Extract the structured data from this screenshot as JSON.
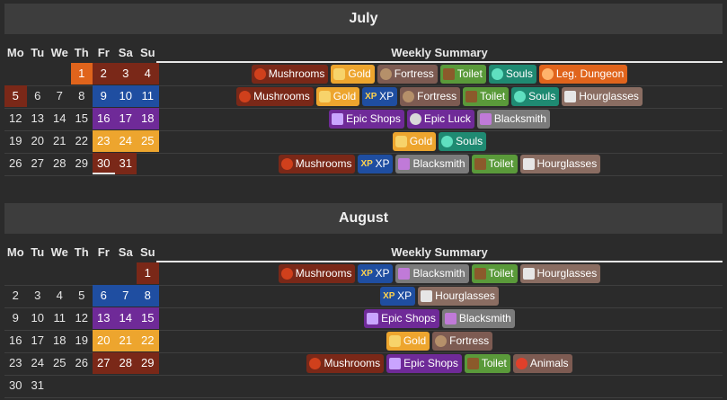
{
  "day_headers": [
    "Mo",
    "Tu",
    "We",
    "Th",
    "Fr",
    "Sa",
    "Su"
  ],
  "summary_title": "Weekly Summary",
  "months": [
    {
      "name": "July",
      "weeks": [
        {
          "days": [
            {
              "d": ""
            },
            {
              "d": ""
            },
            {
              "d": ""
            },
            {
              "d": "1",
              "c": "orange"
            },
            {
              "d": "2",
              "c": "brown"
            },
            {
              "d": "3",
              "c": "brown"
            },
            {
              "d": "4",
              "c": "brown"
            }
          ],
          "events": [
            {
              "k": "mushrooms",
              "label": "Mushrooms"
            },
            {
              "k": "gold",
              "label": "Gold"
            },
            {
              "k": "fortress",
              "label": "Fortress"
            },
            {
              "k": "toilet",
              "label": "Toilet"
            },
            {
              "k": "souls",
              "label": "Souls"
            },
            {
              "k": "dungeon",
              "label": "Leg. Dungeon"
            }
          ]
        },
        {
          "days": [
            {
              "d": "5",
              "c": "brown"
            },
            {
              "d": "6"
            },
            {
              "d": "7"
            },
            {
              "d": "8"
            },
            {
              "d": "9",
              "c": "blue"
            },
            {
              "d": "10",
              "c": "blue"
            },
            {
              "d": "11",
              "c": "blue"
            }
          ],
          "events": [
            {
              "k": "mushrooms",
              "label": "Mushrooms"
            },
            {
              "k": "gold",
              "label": "Gold"
            },
            {
              "k": "xp",
              "label": "XP"
            },
            {
              "k": "fortress",
              "label": "Fortress"
            },
            {
              "k": "toilet",
              "label": "Toilet"
            },
            {
              "k": "souls",
              "label": "Souls"
            },
            {
              "k": "hourglasses",
              "label": "Hourglasses"
            }
          ]
        },
        {
          "days": [
            {
              "d": "12"
            },
            {
              "d": "13"
            },
            {
              "d": "14"
            },
            {
              "d": "15"
            },
            {
              "d": "16",
              "c": "purple"
            },
            {
              "d": "17",
              "c": "purple"
            },
            {
              "d": "18",
              "c": "purple"
            }
          ],
          "events": [
            {
              "k": "epicshops",
              "label": "Epic Shops"
            },
            {
              "k": "epicluck",
              "label": "Epic Luck"
            },
            {
              "k": "blacksmith",
              "label": "Blacksmith"
            }
          ]
        },
        {
          "days": [
            {
              "d": "19"
            },
            {
              "d": "20"
            },
            {
              "d": "21"
            },
            {
              "d": "22"
            },
            {
              "d": "23",
              "c": "yellow"
            },
            {
              "d": "24",
              "c": "yellow"
            },
            {
              "d": "25",
              "c": "yellow"
            }
          ],
          "events": [
            {
              "k": "gold",
              "label": "Gold"
            },
            {
              "k": "souls",
              "label": "Souls"
            }
          ]
        },
        {
          "days": [
            {
              "d": "26"
            },
            {
              "d": "27"
            },
            {
              "d": "28"
            },
            {
              "d": "29"
            },
            {
              "d": "30",
              "c": "brown",
              "today": true
            },
            {
              "d": "31",
              "c": "brown"
            },
            {
              "d": ""
            }
          ],
          "events": [
            {
              "k": "mushrooms",
              "label": "Mushrooms"
            },
            {
              "k": "xp",
              "label": "XP"
            },
            {
              "k": "blacksmith",
              "label": "Blacksmith"
            },
            {
              "k": "toilet",
              "label": "Toilet"
            },
            {
              "k": "hourglasses",
              "label": "Hourglasses"
            }
          ]
        }
      ]
    },
    {
      "name": "August",
      "weeks": [
        {
          "days": [
            {
              "d": ""
            },
            {
              "d": ""
            },
            {
              "d": ""
            },
            {
              "d": ""
            },
            {
              "d": ""
            },
            {
              "d": ""
            },
            {
              "d": "1",
              "c": "brown"
            }
          ],
          "events": [
            {
              "k": "mushrooms",
              "label": "Mushrooms"
            },
            {
              "k": "xp",
              "label": "XP"
            },
            {
              "k": "blacksmith",
              "label": "Blacksmith"
            },
            {
              "k": "toilet",
              "label": "Toilet"
            },
            {
              "k": "hourglasses",
              "label": "Hourglasses"
            }
          ]
        },
        {
          "days": [
            {
              "d": "2"
            },
            {
              "d": "3"
            },
            {
              "d": "4"
            },
            {
              "d": "5"
            },
            {
              "d": "6",
              "c": "blue"
            },
            {
              "d": "7",
              "c": "blue"
            },
            {
              "d": "8",
              "c": "blue"
            }
          ],
          "events": [
            {
              "k": "xp",
              "label": "XP"
            },
            {
              "k": "hourglasses",
              "label": "Hourglasses"
            }
          ]
        },
        {
          "days": [
            {
              "d": "9"
            },
            {
              "d": "10"
            },
            {
              "d": "11"
            },
            {
              "d": "12"
            },
            {
              "d": "13",
              "c": "purple"
            },
            {
              "d": "14",
              "c": "purple"
            },
            {
              "d": "15",
              "c": "purple"
            }
          ],
          "events": [
            {
              "k": "epicshops",
              "label": "Epic Shops"
            },
            {
              "k": "blacksmith",
              "label": "Blacksmith"
            }
          ]
        },
        {
          "days": [
            {
              "d": "16"
            },
            {
              "d": "17"
            },
            {
              "d": "18"
            },
            {
              "d": "19"
            },
            {
              "d": "20",
              "c": "yellow"
            },
            {
              "d": "21",
              "c": "yellow"
            },
            {
              "d": "22",
              "c": "yellow"
            }
          ],
          "events": [
            {
              "k": "gold",
              "label": "Gold"
            },
            {
              "k": "fortress",
              "label": "Fortress"
            }
          ]
        },
        {
          "days": [
            {
              "d": "23"
            },
            {
              "d": "24"
            },
            {
              "d": "25"
            },
            {
              "d": "26"
            },
            {
              "d": "27",
              "c": "brown"
            },
            {
              "d": "28",
              "c": "brown"
            },
            {
              "d": "29",
              "c": "brown"
            }
          ],
          "events": [
            {
              "k": "mushrooms",
              "label": "Mushrooms"
            },
            {
              "k": "epicshops",
              "label": "Epic Shops"
            },
            {
              "k": "toilet",
              "label": "Toilet"
            },
            {
              "k": "animals",
              "label": "Animals"
            }
          ]
        },
        {
          "days": [
            {
              "d": "30"
            },
            {
              "d": "31"
            },
            {
              "d": ""
            },
            {
              "d": ""
            },
            {
              "d": ""
            },
            {
              "d": ""
            },
            {
              "d": ""
            }
          ],
          "events": []
        }
      ]
    }
  ],
  "icons": {
    "mushrooms": "mushroom-icon",
    "gold": "gold-coin-icon",
    "fortress": "fortress-icon",
    "toilet": "toilet-icon",
    "souls": "soul-orb-icon",
    "dungeon": "dungeon-flame-icon",
    "xp": "xp-icon",
    "hourglasses": "hourglass-icon",
    "epicshops": "sword-icon",
    "epicluck": "dice-icon",
    "blacksmith": "crystal-icon",
    "animals": "strawberry-icon"
  },
  "colors": {
    "orange": "#e0641c",
    "brown": "#7a2818",
    "blue": "#1f4ea1",
    "purple": "#6f2a98",
    "yellow": "#eda52e"
  }
}
